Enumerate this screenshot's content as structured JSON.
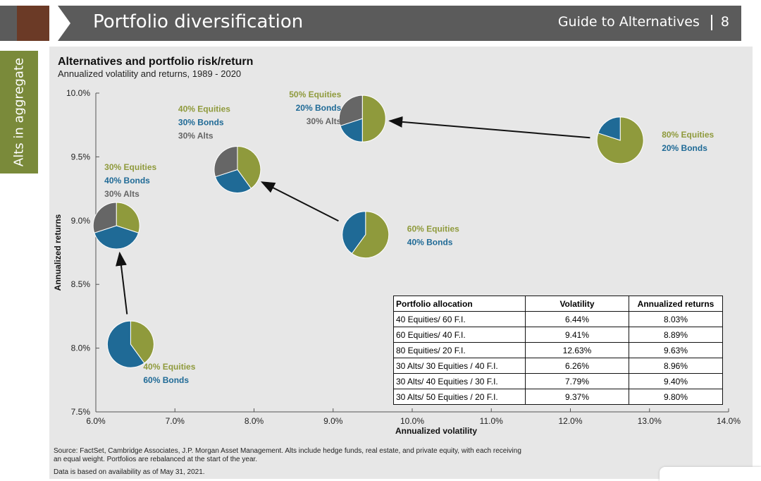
{
  "header": {
    "title": "Portfolio diversification",
    "guide": "Guide to Alternatives",
    "page": "8"
  },
  "side_tab": "Alts in aggregate",
  "chart_data": {
    "type": "scatter",
    "title": "Alternatives and portfolio risk/return",
    "subtitle": "Annualized volatility and returns, 1989 - 2020",
    "xlabel": "Annualized volatility",
    "ylabel": "Annualized returns",
    "xlim": [
      6.0,
      14.0
    ],
    "ylim": [
      7.5,
      10.0
    ],
    "xticks": [
      "6.0%",
      "7.0%",
      "8.0%",
      "9.0%",
      "10.0%",
      "11.0%",
      "12.0%",
      "13.0%",
      "14.0%"
    ],
    "yticks": [
      "7.5%",
      "8.0%",
      "8.5%",
      "9.0%",
      "9.5%",
      "10.0%"
    ],
    "colors": {
      "equities": "#8f9a3c",
      "bonds": "#1f6a96",
      "alts": "#666666"
    },
    "portfolios": [
      {
        "name": "40/60",
        "x": 6.44,
        "y": 8.03,
        "equities": 40,
        "bonds": 60,
        "alts": 0,
        "labels": [
          "40% Equities",
          "60% Bonds"
        ],
        "label_side": "below-right"
      },
      {
        "name": "60/40",
        "x": 9.41,
        "y": 8.89,
        "equities": 60,
        "bonds": 40,
        "alts": 0,
        "labels": [
          "60% Equities",
          "40% Bonds"
        ],
        "label_side": "right"
      },
      {
        "name": "80/20",
        "x": 12.63,
        "y": 9.63,
        "equities": 80,
        "bonds": 20,
        "alts": 0,
        "labels": [
          "80% Equities",
          "20% Bonds"
        ],
        "label_side": "right"
      },
      {
        "name": "30/30/40",
        "x": 6.26,
        "y": 8.96,
        "equities": 30,
        "bonds": 40,
        "alts": 30,
        "labels": [
          "30% Equities",
          "40% Bonds",
          "30% Alts"
        ],
        "label_side": "above"
      },
      {
        "name": "30/40/30",
        "x": 7.79,
        "y": 9.4,
        "equities": 40,
        "bonds": 30,
        "alts": 30,
        "labels": [
          "40% Equities",
          "30% Bonds",
          "30% Alts"
        ],
        "label_side": "above-left"
      },
      {
        "name": "30/50/20",
        "x": 9.37,
        "y": 9.8,
        "equities": 50,
        "bonds": 20,
        "alts": 30,
        "labels": [
          "50% Equities",
          "20% Bonds",
          "30% Alts"
        ],
        "label_side": "left"
      }
    ],
    "arrows": [
      [
        "40/60",
        "30/30/40"
      ],
      [
        "60/40",
        "30/40/30"
      ],
      [
        "80/20",
        "30/50/20"
      ]
    ]
  },
  "table": {
    "headers": [
      "Portfolio allocation",
      "Volatility",
      "Annualized returns"
    ],
    "rows": [
      [
        "40 Equities/ 60 F.I.",
        "6.44%",
        "8.03%"
      ],
      [
        "60 Equities/ 40 F.I.",
        "9.41%",
        "8.89%"
      ],
      [
        "80 Equities/ 20 F.I.",
        "12.63%",
        "9.63%"
      ],
      [
        "30 Alts/ 30 Equities / 40 F.I.",
        "6.26%",
        "8.96%"
      ],
      [
        "30 Alts/ 40 Equities / 30 F.I.",
        "7.79%",
        "9.40%"
      ],
      [
        "30 Alts/ 50 Equities / 20 F.I.",
        "9.37%",
        "9.80%"
      ]
    ]
  },
  "source_lines": [
    "Source: FactSet, Cambridge Associates, J.P. Morgan Asset Management. Alts include hedge funds, real estate, and private equity, with each receiving",
    "an equal weight. Portfolios are rebalanced at the start of the year.",
    "Data is based on availability as of May 31, 2021."
  ]
}
